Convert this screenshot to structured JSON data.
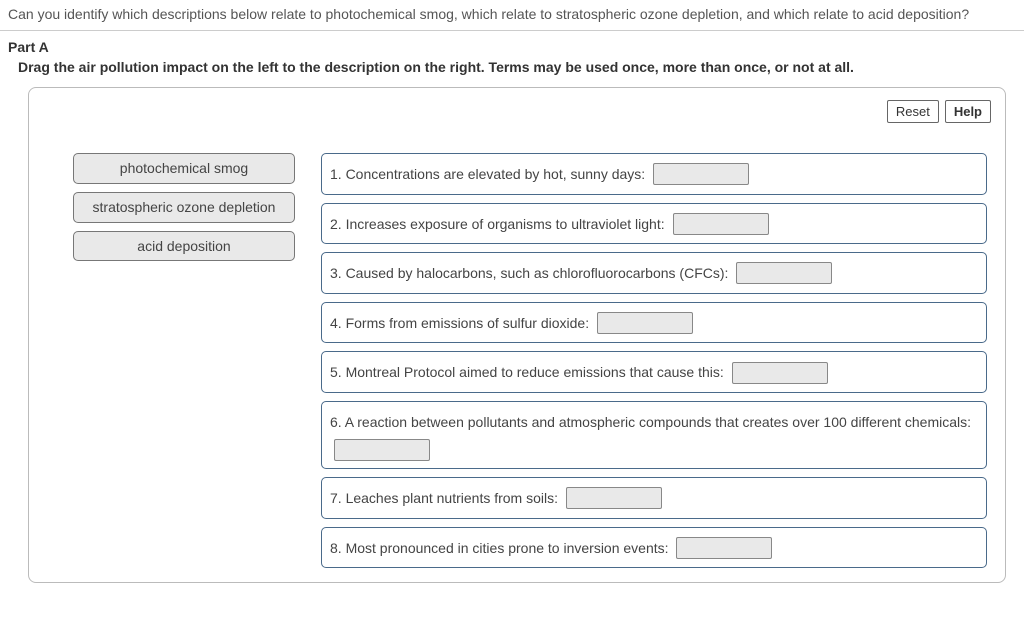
{
  "question_text": "Can you identify which descriptions below relate to photochemical smog, which relate to stratospheric ozone depletion, and which relate to acid deposition?",
  "part_label": "Part A",
  "instructions": "Drag the air pollution impact on the left to the description on the right. Terms may be used once, more than once, or not at all.",
  "toolbar": {
    "reset_label": "Reset",
    "help_label": "Help"
  },
  "terms": [
    {
      "label": "photochemical smog"
    },
    {
      "label": "stratospheric ozone depletion"
    },
    {
      "label": "acid deposition"
    }
  ],
  "targets": [
    {
      "text": "1. Concentrations are elevated by hot, sunny days:"
    },
    {
      "text": "2. Increases exposure of organisms to ultraviolet light:"
    },
    {
      "text": "3. Caused by halocarbons, such as chlorofluorocarbons (CFCs):"
    },
    {
      "text": "4. Forms from emissions of sulfur dioxide:"
    },
    {
      "text": "5. Montreal Protocol aimed to reduce emissions that cause this:"
    },
    {
      "text": "6. A reaction between pollutants and atmospheric compounds that creates over 100 different chemicals:"
    },
    {
      "text": "7. Leaches plant nutrients from soils:"
    },
    {
      "text": "8. Most pronounced in cities prone to inversion events:"
    }
  ],
  "colors": {
    "panel_border": "#bbbbbb",
    "target_border": "#4a6a8a",
    "chip_bg": "#e9e9e9",
    "text": "#444444"
  }
}
